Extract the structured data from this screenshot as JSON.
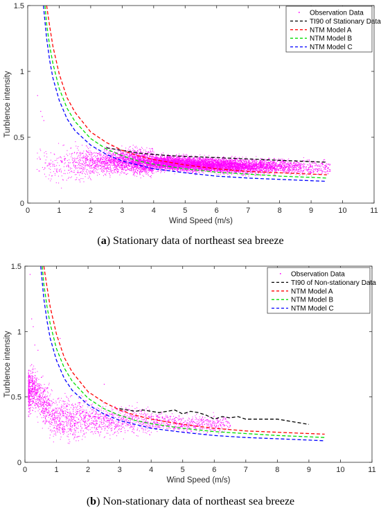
{
  "captions": [
    {
      "letter": "a",
      "text": "Stationary data of northeast sea breeze"
    },
    {
      "letter": "b",
      "text": "Non-stationary data of northeast sea breeze"
    }
  ],
  "colors": {
    "observation": "#ff00ff",
    "ti90": "#000000",
    "ntm_a": "#ff0000",
    "ntm_b": "#00dd00",
    "ntm_c": "#0000ff"
  },
  "chart_data": [
    {
      "type": "scatter",
      "xlabel": "Wind Speed (m/s)",
      "ylabel": "Turblence intensity",
      "xlim": [
        0,
        11
      ],
      "ylim": [
        0,
        1.5
      ],
      "xticks": [
        "0",
        "1",
        "2",
        "3",
        "4",
        "5",
        "6",
        "7",
        "8",
        "9",
        "10",
        "11"
      ],
      "yticks": [
        "0",
        "0.5",
        "1",
        "1.5"
      ],
      "legend_position": "top-right",
      "legend": [
        "Observation Data",
        "TI90 of Stationary Data",
        "NTM Model A",
        "NTM Model B",
        "NTM Model C"
      ],
      "scatter_cloud": {
        "name": "Observation Data",
        "x_range": [
          0.2,
          9.6
        ],
        "center_curve": [
          [
            0.5,
            0.3
          ],
          [
            1,
            0.3
          ],
          [
            2,
            0.31
          ],
          [
            3,
            0.32
          ],
          [
            4,
            0.31
          ],
          [
            5,
            0.3
          ],
          [
            6,
            0.29
          ],
          [
            7,
            0.28
          ],
          [
            8,
            0.28
          ],
          [
            9,
            0.27
          ]
        ],
        "outliers": [
          [
            0.3,
            0.82
          ],
          [
            0.4,
            0.7
          ],
          [
            0.45,
            0.66
          ],
          [
            0.5,
            0.63
          ]
        ]
      },
      "series": [
        {
          "name": "TI90 of Stationary Data",
          "x": [
            2.5,
            3,
            3.5,
            4,
            4.5,
            5,
            5.5,
            6,
            6.5,
            7,
            7.5,
            8,
            8.5,
            9,
            9.5
          ],
          "y": [
            0.42,
            0.4,
            0.38,
            0.37,
            0.36,
            0.355,
            0.35,
            0.345,
            0.34,
            0.335,
            0.33,
            0.325,
            0.32,
            0.315,
            0.31
          ]
        },
        {
          "name": "NTM Model A",
          "x": [
            0.6,
            0.7,
            0.8,
            1,
            1.25,
            1.5,
            2,
            2.5,
            3,
            3.5,
            4,
            5,
            6,
            7,
            8,
            9,
            9.5
          ],
          "y": [
            1.5,
            1.34,
            1.19,
            0.98,
            0.8,
            0.69,
            0.54,
            0.46,
            0.4,
            0.36,
            0.33,
            0.29,
            0.26,
            0.24,
            0.23,
            0.22,
            0.215
          ]
        },
        {
          "name": "NTM Model B",
          "x": [
            0.55,
            0.6,
            0.7,
            0.8,
            1,
            1.25,
            1.5,
            2,
            2.5,
            3,
            3.5,
            4,
            5,
            6,
            7,
            8,
            9,
            9.5
          ],
          "y": [
            1.5,
            1.36,
            1.19,
            1.06,
            0.87,
            0.72,
            0.62,
            0.49,
            0.41,
            0.36,
            0.32,
            0.295,
            0.26,
            0.235,
            0.22,
            0.205,
            0.195,
            0.19
          ]
        },
        {
          "name": "NTM Model C",
          "x": [
            0.5,
            0.6,
            0.7,
            0.8,
            1,
            1.25,
            1.5,
            2,
            2.5,
            3,
            3.5,
            4,
            5,
            6,
            7,
            8,
            9,
            9.5
          ],
          "y": [
            1.5,
            1.25,
            1.08,
            0.95,
            0.78,
            0.64,
            0.55,
            0.44,
            0.37,
            0.32,
            0.29,
            0.26,
            0.23,
            0.205,
            0.19,
            0.18,
            0.17,
            0.165
          ]
        }
      ]
    },
    {
      "type": "scatter",
      "xlabel": "Wind Speed (m/s)",
      "ylabel": "Turblence intensity",
      "xlim": [
        0,
        11
      ],
      "ylim": [
        0,
        1.5
      ],
      "xticks": [
        "0",
        "1",
        "2",
        "3",
        "4",
        "5",
        "6",
        "7",
        "8",
        "9",
        "10",
        "11"
      ],
      "yticks": [
        "0",
        "0.5",
        "1",
        "1.5"
      ],
      "legend_position": "top-right",
      "legend": [
        "Observation Data",
        "TI90 of Non-stationary Data",
        "NTM Model A",
        "NTM Model B",
        "NTM Model C"
      ],
      "scatter_cloud": {
        "name": "Observation Data",
        "x_range": [
          0.1,
          6.5
        ],
        "center_curve": [
          [
            0.3,
            0.55
          ],
          [
            0.5,
            0.48
          ],
          [
            0.8,
            0.38
          ],
          [
            1,
            0.34
          ],
          [
            1.5,
            0.33
          ],
          [
            2,
            0.33
          ],
          [
            3,
            0.32
          ],
          [
            4,
            0.31
          ],
          [
            5,
            0.3
          ],
          [
            6,
            0.29
          ]
        ],
        "outliers": [
          [
            0.15,
            1.44
          ],
          [
            0.2,
            1.1
          ],
          [
            0.25,
            1.04
          ],
          [
            0.3,
            0.9
          ],
          [
            0.4,
            0.86
          ],
          [
            0.2,
            0.75
          ],
          [
            1.1,
            0.95
          ],
          [
            1.0,
            0.78
          ],
          [
            2.5,
            0.6
          ]
        ]
      },
      "series": [
        {
          "name": "TI90 of Non-stationary Data",
          "x": [
            3,
            3.25,
            3.5,
            3.75,
            4,
            4.25,
            4.5,
            4.75,
            5,
            5.25,
            5.5,
            5.75,
            6,
            6.25,
            6.5,
            6.75,
            7,
            7.5,
            8,
            8.5,
            9
          ],
          "y": [
            0.41,
            0.4,
            0.39,
            0.4,
            0.39,
            0.38,
            0.39,
            0.4,
            0.37,
            0.39,
            0.38,
            0.36,
            0.33,
            0.35,
            0.34,
            0.35,
            0.33,
            0.33,
            0.33,
            0.31,
            0.29
          ]
        },
        {
          "name": "NTM Model A",
          "x": [
            0.6,
            0.7,
            0.8,
            1,
            1.25,
            1.5,
            2,
            2.5,
            3,
            3.5,
            4,
            5,
            6,
            7,
            8,
            9,
            9.5
          ],
          "y": [
            1.5,
            1.34,
            1.19,
            0.98,
            0.8,
            0.69,
            0.54,
            0.46,
            0.4,
            0.36,
            0.33,
            0.29,
            0.26,
            0.24,
            0.23,
            0.22,
            0.215
          ]
        },
        {
          "name": "NTM Model B",
          "x": [
            0.55,
            0.6,
            0.7,
            0.8,
            1,
            1.25,
            1.5,
            2,
            2.5,
            3,
            3.5,
            4,
            5,
            6,
            7,
            8,
            9,
            9.5
          ],
          "y": [
            1.5,
            1.36,
            1.19,
            1.06,
            0.87,
            0.72,
            0.62,
            0.49,
            0.41,
            0.36,
            0.32,
            0.295,
            0.26,
            0.235,
            0.22,
            0.205,
            0.195,
            0.19
          ]
        },
        {
          "name": "NTM Model C",
          "x": [
            0.5,
            0.6,
            0.7,
            0.8,
            1,
            1.25,
            1.5,
            2,
            2.5,
            3,
            3.5,
            4,
            5,
            6,
            7,
            8,
            9,
            9.5
          ],
          "y": [
            1.5,
            1.25,
            1.08,
            0.95,
            0.78,
            0.64,
            0.55,
            0.44,
            0.37,
            0.32,
            0.29,
            0.26,
            0.23,
            0.205,
            0.19,
            0.18,
            0.17,
            0.165
          ]
        }
      ]
    }
  ]
}
